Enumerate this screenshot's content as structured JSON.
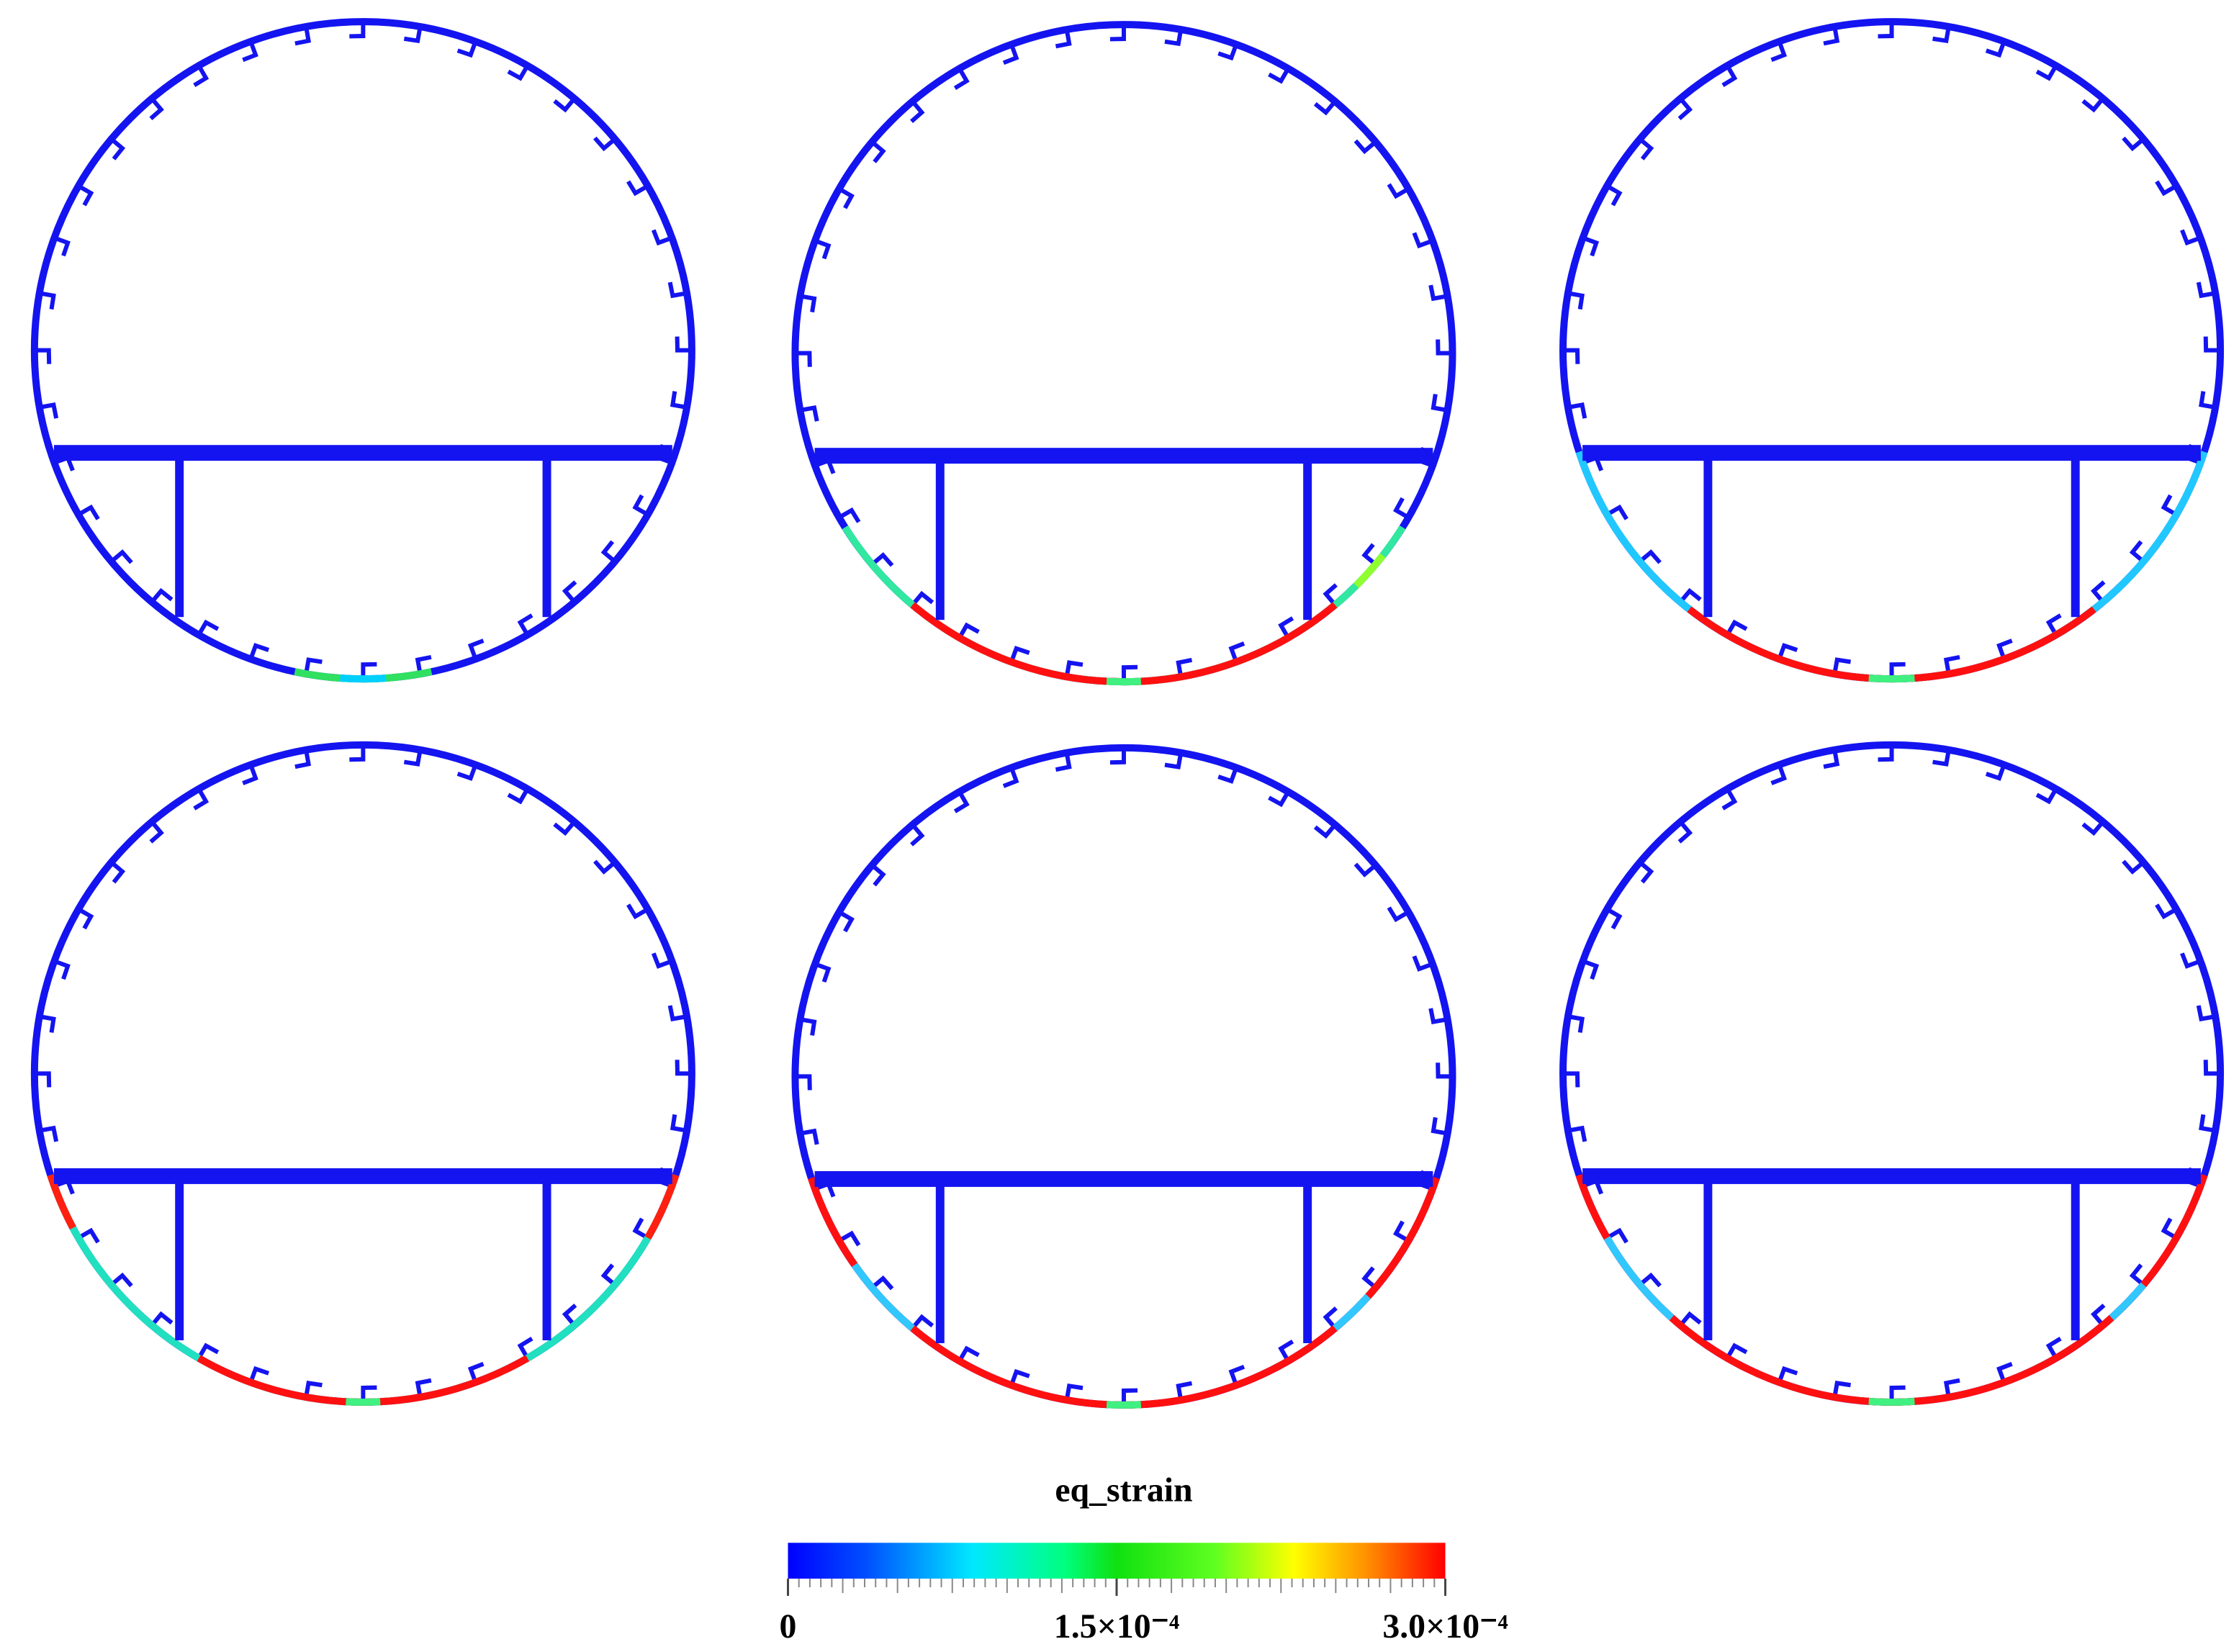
{
  "colorbar": {
    "title": "eq_strain",
    "lim": [
      0,
      0.0003
    ],
    "ticks": [
      0,
      {
        "value": 0.00015,
        "label": "1.5×10⁻⁴"
      },
      {
        "value": 0.0003,
        "label": "3.0×10⁻⁴"
      }
    ]
  }
}
